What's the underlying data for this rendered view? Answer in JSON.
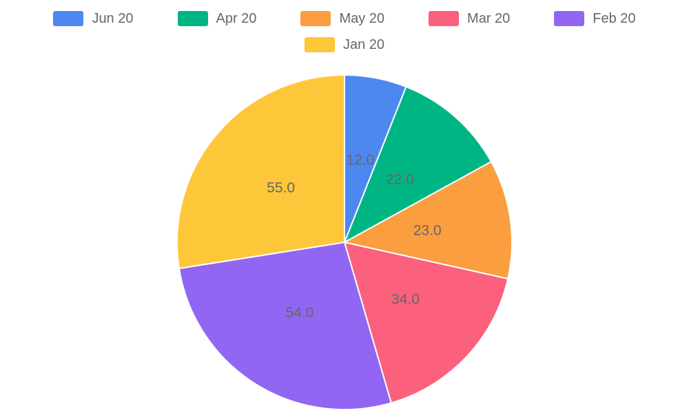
{
  "chart_data": {
    "type": "pie",
    "title": "",
    "labels": [
      "Jun 20",
      "Apr 20",
      "May 20",
      "Mar 20",
      "Feb 20",
      "Jan 20"
    ],
    "values": [
      12.0,
      22.0,
      23.0,
      34.0,
      54.0,
      55.0
    ],
    "value_labels": [
      "12.0",
      "22.0",
      "23.0",
      "34.0",
      "54.0",
      "55.0"
    ],
    "colors": [
      "#4d87f0",
      "#00b584",
      "#fb9e40",
      "#fb607c",
      "#9166f2",
      "#fec73a"
    ],
    "start_angle_deg": 0,
    "direction": "clockwise",
    "legend_position": "top",
    "legend_rows": [
      [
        "Jun 20",
        "Apr 20",
        "May 20",
        "Mar 20",
        "Feb 20"
      ],
      [
        "Jan 20"
      ]
    ],
    "slice_label_color": "#666666",
    "legend_text_color": "#666666",
    "slice_border_color": "#ffffff",
    "background_color": "#ffffff"
  }
}
